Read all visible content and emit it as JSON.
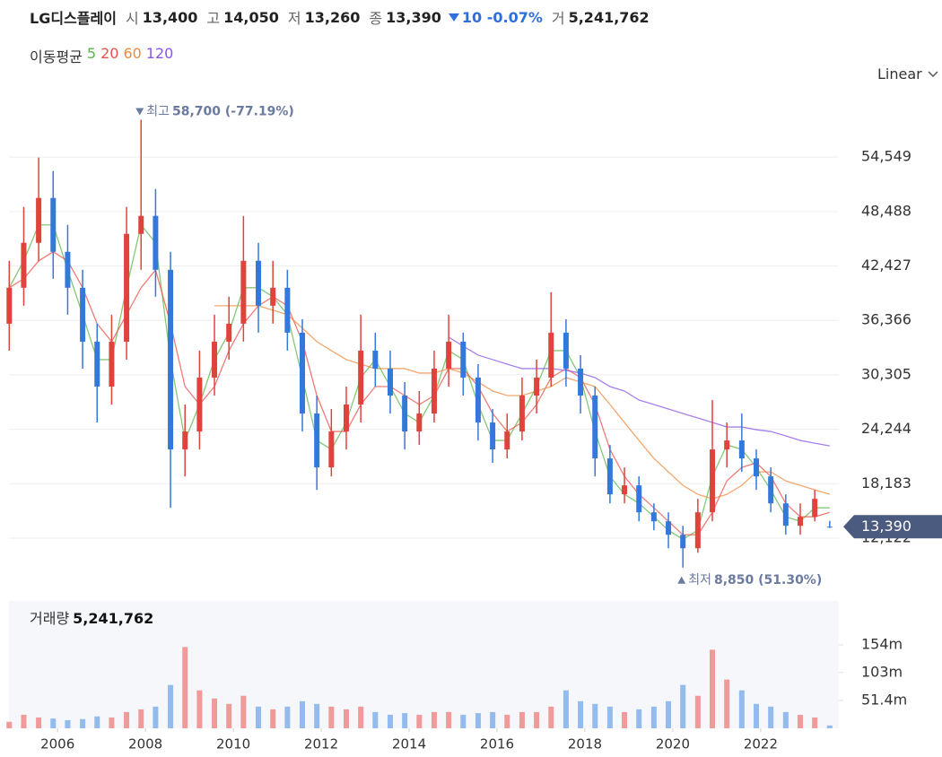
{
  "quote": {
    "name": "LG디스플레이",
    "items": [
      {
        "label": "시",
        "value": "13,400"
      },
      {
        "label": "고",
        "value": "14,050"
      },
      {
        "label": "저",
        "value": "13,260"
      },
      {
        "label": "종",
        "value": "13,390"
      }
    ],
    "change": "10 -0.07%",
    "volume_label": "거",
    "volume": "5,241,762"
  },
  "chart_data": [
    {
      "type": "candlestick",
      "scale_label": "Linear",
      "log_scale": false,
      "grid": true,
      "colors": {
        "up": "#e0433b",
        "down": "#3478dc"
      },
      "x": [
        2004.9,
        2005.23,
        2005.57,
        2005.9,
        2006.23,
        2006.57,
        2006.9,
        2007.23,
        2007.57,
        2007.9,
        2008.23,
        2008.57,
        2008.9,
        2009.23,
        2009.57,
        2009.9,
        2010.23,
        2010.57,
        2010.9,
        2011.23,
        2011.57,
        2011.9,
        2012.23,
        2012.57,
        2012.9,
        2013.23,
        2013.57,
        2013.9,
        2014.23,
        2014.57,
        2014.9,
        2015.23,
        2015.57,
        2015.9,
        2016.23,
        2016.57,
        2016.9,
        2017.23,
        2017.57,
        2017.9,
        2018.23,
        2018.57,
        2018.9,
        2019.23,
        2019.57,
        2019.9,
        2020.23,
        2020.57,
        2020.9,
        2021.23,
        2021.57,
        2021.9,
        2022.23,
        2022.57,
        2022.9,
        2023.23,
        2023.57
      ],
      "open": [
        36000,
        40000,
        45000,
        50000,
        44000,
        40000,
        34000,
        29000,
        34000,
        46000,
        48000,
        42000,
        22000,
        24000,
        30000,
        34000,
        36000,
        43000,
        38000,
        40000,
        35000,
        26000,
        20000,
        24000,
        27000,
        33000,
        31000,
        28000,
        24000,
        26000,
        31000,
        34000,
        30000,
        25000,
        22000,
        24000,
        28000,
        30000,
        35000,
        31000,
        28000,
        21000,
        17000,
        18000,
        15000,
        14000,
        12500,
        11000,
        15000,
        22000,
        23000,
        21000,
        19000,
        16000,
        13500,
        14500,
        13400
      ],
      "high": [
        43000,
        49000,
        54500,
        53000,
        47000,
        42000,
        36000,
        37000,
        49000,
        58700,
        51000,
        44000,
        27000,
        33000,
        37000,
        39000,
        48000,
        45000,
        43000,
        42000,
        36500,
        28000,
        26500,
        29000,
        37000,
        35000,
        33000,
        29500,
        28500,
        33000,
        37000,
        35000,
        31500,
        26500,
        26000,
        30000,
        32000,
        39500,
        36500,
        32500,
        29000,
        22500,
        20000,
        19000,
        16000,
        15000,
        13500,
        16500,
        27500,
        25000,
        26000,
        22000,
        20000,
        17000,
        16000,
        17500,
        14050
      ],
      "low": [
        33000,
        38000,
        43000,
        41000,
        37000,
        31000,
        25000,
        27000,
        32000,
        42000,
        39000,
        15500,
        19000,
        22000,
        28000,
        32000,
        34000,
        35000,
        36000,
        33000,
        24000,
        17500,
        19000,
        22000,
        25000,
        29000,
        26000,
        22000,
        22500,
        25000,
        29000,
        28000,
        23000,
        20500,
        21000,
        23000,
        26000,
        29000,
        29000,
        26000,
        19000,
        16000,
        16000,
        14000,
        13000,
        11000,
        8850,
        10500,
        14000,
        20000,
        19500,
        17500,
        15000,
        12500,
        12500,
        14000,
        13260
      ],
      "close": [
        40000,
        45000,
        50000,
        44000,
        40000,
        34000,
        29000,
        34000,
        46000,
        48000,
        42000,
        22000,
        24000,
        30000,
        34000,
        36000,
        43000,
        38000,
        40000,
        35000,
        26000,
        20000,
        24000,
        27000,
        33000,
        31000,
        28000,
        24000,
        26000,
        31000,
        34000,
        30000,
        25000,
        22000,
        24000,
        28000,
        30000,
        35000,
        31000,
        28000,
        21000,
        17000,
        18000,
        15000,
        14000,
        12500,
        11000,
        15000,
        22000,
        23000,
        21000,
        19000,
        16000,
        13500,
        14500,
        16500,
        13390
      ],
      "last_price_label": "13,390",
      "xlim": [
        2004.69,
        2023.88
      ],
      "ylim": [
        7000,
        63000
      ],
      "yticks": [
        {
          "value": 12122,
          "label": "12,122"
        },
        {
          "value": 18183,
          "label": "18,183"
        },
        {
          "value": 24244,
          "label": "24,244"
        },
        {
          "value": 30305,
          "label": "30,305"
        },
        {
          "value": 36366,
          "label": "36,366"
        },
        {
          "value": 42427,
          "label": "42,427"
        },
        {
          "value": 48488,
          "label": "48,488"
        },
        {
          "value": 54549,
          "label": "54,549"
        }
      ],
      "annotations": [
        {
          "kind": "max",
          "label": "최고",
          "text": "58,700 (-77.19%)"
        },
        {
          "kind": "min",
          "label": "최저",
          "text": "8,850 (51.30%)"
        }
      ],
      "moving_averages": {
        "title": "이동평균",
        "series": [
          {
            "name": "5",
            "color": "#5cb548",
            "values": [
              40000,
              43000,
              47000,
              47000,
              42000,
              37000,
              32000,
              32000,
              40000,
              47000,
              45000,
              32000,
              23000,
              27000,
              32000,
              35000,
              40000,
              40000,
              39000,
              37000,
              30000,
              23000,
              22000,
              25000,
              30000,
              32000,
              29000,
              26000,
              25000,
              28000,
              33000,
              32000,
              27000,
              23000,
              23000,
              26000,
              29000,
              33000,
              33000,
              30000,
              24000,
              19000,
              17000,
              16000,
              14500,
              13000,
              12000,
              13000,
              19000,
              22500,
              22000,
              20000,
              17500,
              14500,
              14000,
              15500,
              15500
            ]
          },
          {
            "name": "20",
            "color": "#e8524a",
            "values": [
              40000,
              41000,
              43000,
              44000,
              43000,
              40000,
              36000,
              34000,
              37000,
              40000,
              42000,
              36000,
              29000,
              27000,
              29000,
              33000,
              36000,
              38000,
              39000,
              38000,
              34000,
              28000,
              24000,
              24000,
              27000,
              29000,
              29000,
              28000,
              27000,
              28000,
              31000,
              31000,
              29000,
              26000,
              24000,
              25000,
              27000,
              30000,
              31000,
              30000,
              27000,
              22000,
              19000,
              17000,
              15500,
              14000,
              12500,
              12500,
              15000,
              18500,
              20000,
              20500,
              19000,
              16000,
              14500,
              14500,
              15000
            ]
          },
          {
            "name": "60",
            "color": "#ee8a3e",
            "values": [
              null,
              null,
              null,
              null,
              null,
              null,
              null,
              null,
              null,
              null,
              null,
              null,
              null,
              null,
              38000,
              38000,
              38000,
              38000,
              37500,
              37000,
              35500,
              34000,
              33000,
              32000,
              31500,
              31000,
              31000,
              31000,
              30500,
              30500,
              31000,
              30500,
              29500,
              28500,
              28000,
              28000,
              28500,
              29000,
              30000,
              29500,
              29000,
              27000,
              25000,
              23000,
              21000,
              19500,
              18000,
              17000,
              16500,
              17000,
              18000,
              19500,
              19500,
              18500,
              18000,
              17500,
              17000
            ]
          },
          {
            "name": "120",
            "color": "#8a55e6",
            "values": [
              null,
              null,
              null,
              null,
              null,
              null,
              null,
              null,
              null,
              null,
              null,
              null,
              null,
              null,
              null,
              null,
              null,
              null,
              null,
              null,
              null,
              null,
              null,
              null,
              null,
              null,
              null,
              null,
              null,
              null,
              34500,
              33500,
              32500,
              32000,
              31500,
              31000,
              31000,
              31000,
              30800,
              30500,
              30000,
              29000,
              28500,
              27500,
              27000,
              26500,
              26000,
              25500,
              25000,
              24500,
              24500,
              24200,
              24000,
              23500,
              23000,
              22700,
              22400
            ]
          }
        ]
      }
    },
    {
      "type": "bar",
      "title": "거래량",
      "subtitle": "5,241,762",
      "colors": {
        "up": "#f09a9a",
        "down": "#93bbee"
      },
      "x": [
        2004.9,
        2005.23,
        2005.57,
        2005.9,
        2006.23,
        2006.57,
        2006.9,
        2007.23,
        2007.57,
        2007.9,
        2008.23,
        2008.57,
        2008.9,
        2009.23,
        2009.57,
        2009.9,
        2010.23,
        2010.57,
        2010.9,
        2011.23,
        2011.57,
        2011.9,
        2012.23,
        2012.57,
        2012.9,
        2013.23,
        2013.57,
        2013.9,
        2014.23,
        2014.57,
        2014.9,
        2015.23,
        2015.57,
        2015.9,
        2016.23,
        2016.57,
        2016.9,
        2017.23,
        2017.57,
        2017.9,
        2018.23,
        2018.57,
        2018.9,
        2019.23,
        2019.57,
        2019.9,
        2020.23,
        2020.57,
        2020.9,
        2021.23,
        2021.57,
        2021.9,
        2022.23,
        2022.57,
        2022.9,
        2023.23,
        2023.57
      ],
      "values": [
        12000000,
        25000000,
        20000000,
        18000000,
        15000000,
        17000000,
        22000000,
        20000000,
        30000000,
        35000000,
        40000000,
        80000000,
        150000000,
        70000000,
        55000000,
        45000000,
        60000000,
        40000000,
        35000000,
        40000000,
        50000000,
        45000000,
        40000000,
        35000000,
        40000000,
        30000000,
        25000000,
        28000000,
        25000000,
        30000000,
        30000000,
        25000000,
        28000000,
        30000000,
        25000000,
        30000000,
        30000000,
        40000000,
        70000000,
        50000000,
        45000000,
        40000000,
        30000000,
        35000000,
        40000000,
        50000000,
        80000000,
        60000000,
        145000000,
        90000000,
        70000000,
        45000000,
        40000000,
        30000000,
        25000000,
        20000000,
        5241762
      ],
      "xlim": [
        2004.69,
        2023.88
      ],
      "xticks": [
        2006,
        2008,
        2010,
        2012,
        2014,
        2016,
        2018,
        2020,
        2022
      ],
      "ylim": [
        0,
        235000000
      ],
      "yticks": [
        {
          "value": 51400000,
          "label": "51.4m"
        },
        {
          "value": 103000000,
          "label": "103m"
        },
        {
          "value": 154000000,
          "label": "154m"
        }
      ]
    }
  ]
}
